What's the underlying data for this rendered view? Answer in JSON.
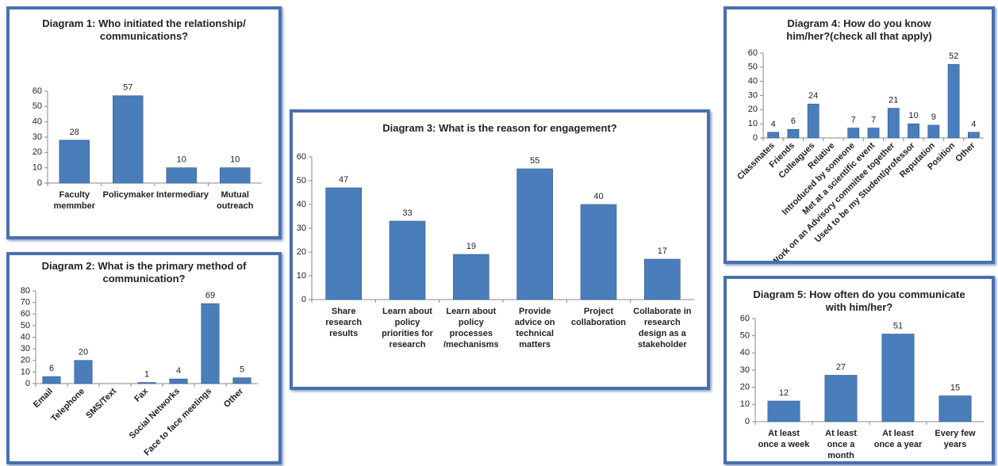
{
  "chart_data": [
    {
      "type": "bar",
      "title": "Diagram 1: Who initiated the relationship/ communications?",
      "categories": [
        "Faculty memmber",
        "Policymaker",
        "Intermediary",
        "Mutual outreach"
      ],
      "values": [
        28,
        57,
        10,
        10
      ],
      "color": "#4a7ebb",
      "ylim": [
        0,
        60
      ],
      "yticks": [
        0,
        10,
        20,
        30,
        40,
        50,
        60
      ],
      "grid": false
    },
    {
      "type": "bar",
      "title": "Diagram 2: What is the primary method of communication?",
      "categories": [
        "Email",
        "Telephone",
        "SMS/Text",
        "Fax",
        "Social Networks",
        "Face to face meetings",
        "Other"
      ],
      "values": [
        6,
        20,
        null,
        1,
        4,
        69,
        5
      ],
      "color": "#4a7ebb",
      "ylim": [
        0,
        80
      ],
      "yticks": [
        0,
        10,
        20,
        30,
        40,
        50,
        60,
        70,
        80
      ],
      "grid": false
    },
    {
      "type": "bar",
      "title": "Diagram 3: What is the reason for engagement?",
      "categories": [
        "Share research results",
        "Learn about policy priorities for research",
        "Learn about policy processes /mechanisms",
        "Provide advice on technical matters",
        "Project collaboration",
        "Collaborate in research design as a stakeholder"
      ],
      "values": [
        47,
        33,
        19,
        55,
        40,
        17
      ],
      "color": "#4a7ebb",
      "ylim": [
        0,
        60
      ],
      "yticks": [
        0,
        10,
        20,
        30,
        40,
        50,
        60
      ],
      "grid": false
    },
    {
      "type": "bar",
      "title": "Diagram 4: How do you know him/her?(check all that apply)",
      "categories": [
        "Classmates",
        "Friends",
        "Colleagues",
        "Relative",
        "Introduced by someone",
        "Met at a scientific event",
        "Work on an Advisory committee together",
        "Used to be my Student/professor",
        "Reputation",
        "Position",
        "Other"
      ],
      "values": [
        4,
        6,
        24,
        null,
        7,
        7,
        21,
        10,
        9,
        52,
        4
      ],
      "color": "#4a7ebb",
      "ylim": [
        0,
        60
      ],
      "yticks": [
        0,
        10,
        20,
        30,
        40,
        50,
        60
      ],
      "grid": false
    },
    {
      "type": "bar",
      "title": "Diagram 5: How often do you communicate with him/her?",
      "categories": [
        "At least once a week",
        "At least once a month",
        "At least once a year",
        "Every few years"
      ],
      "values": [
        12,
        27,
        51,
        15
      ],
      "color": "#4a7ebb",
      "ylim": [
        0,
        60
      ],
      "yticks": [
        0,
        10,
        20,
        30,
        40,
        50,
        60
      ],
      "grid": false
    }
  ]
}
